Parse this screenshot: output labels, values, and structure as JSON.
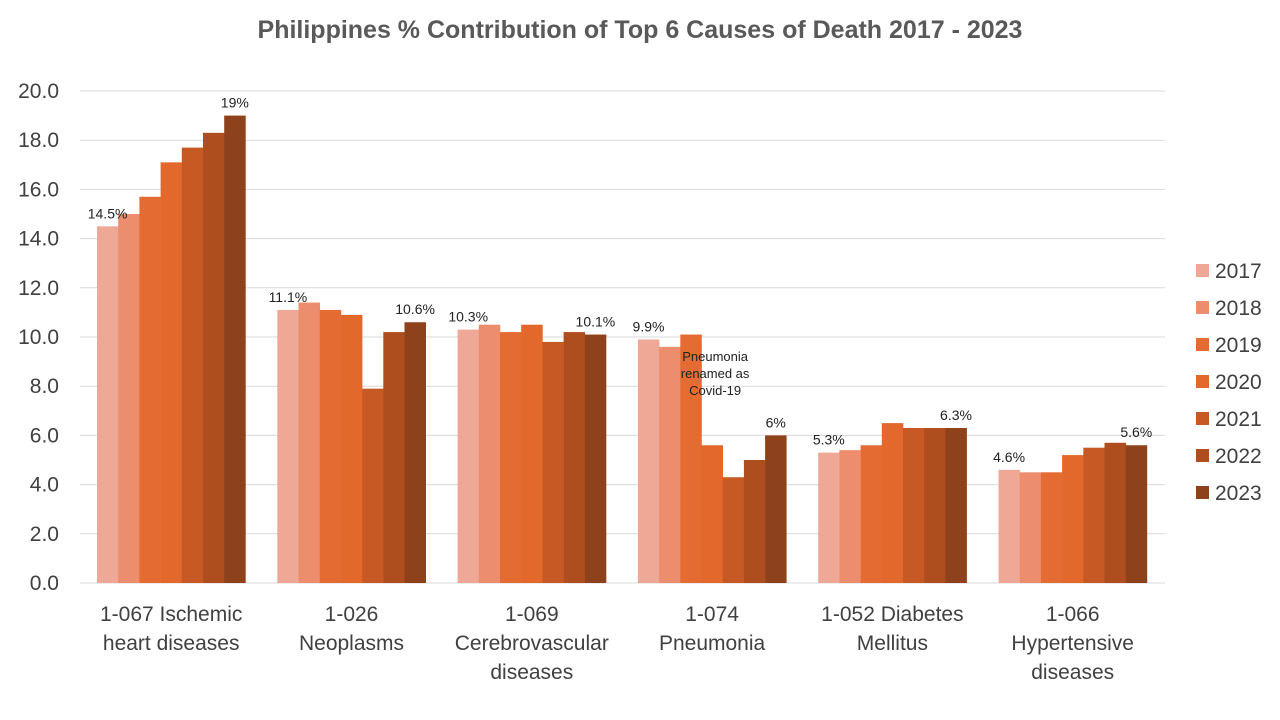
{
  "chart_data": {
    "type": "bar",
    "title": "Philippines % Contribution of Top 6 Causes of Death 2017 - 2023",
    "ylim": [
      0,
      20
    ],
    "yticks": [
      "0.0",
      "2.0",
      "4.0",
      "6.0",
      "8.0",
      "10.0",
      "12.0",
      "14.0",
      "16.0",
      "18.0",
      "20.0"
    ],
    "grid": true,
    "legend_position": "right",
    "categories": [
      [
        "1-067  Ischemic",
        "heart diseases"
      ],
      [
        "1-026",
        "Neoplasms"
      ],
      [
        "1-069",
        "Cerebrovascular",
        "diseases"
      ],
      [
        "1-074",
        "Pneumonia"
      ],
      [
        "1-052  Diabetes",
        "Mellitus"
      ],
      [
        "1-066",
        "Hypertensive",
        "diseases"
      ]
    ],
    "series": [
      {
        "name": "2017",
        "color": "#F0A896",
        "values": [
          14.5,
          11.1,
          10.3,
          9.9,
          5.3,
          4.6
        ]
      },
      {
        "name": "2018",
        "color": "#EC8E6E",
        "values": [
          15.0,
          11.4,
          10.5,
          9.6,
          5.4,
          4.5
        ]
      },
      {
        "name": "2019",
        "color": "#E46C32",
        "values": [
          15.7,
          11.1,
          10.2,
          10.1,
          5.6,
          4.5
        ]
      },
      {
        "name": "2020",
        "color": "#E2692B",
        "values": [
          17.1,
          10.9,
          10.5,
          5.6,
          6.5,
          5.2
        ]
      },
      {
        "name": "2021",
        "color": "#C75A24",
        "values": [
          17.7,
          7.9,
          9.8,
          4.3,
          6.3,
          5.5
        ]
      },
      {
        "name": "2022",
        "color": "#AE4E1F",
        "values": [
          18.3,
          10.2,
          10.2,
          5.0,
          6.3,
          5.7
        ]
      },
      {
        "name": "2023",
        "color": "#8E421B",
        "values": [
          19.0,
          10.6,
          10.1,
          6.0,
          6.3,
          5.6
        ]
      }
    ],
    "data_labels": [
      {
        "category": 0,
        "series": 0,
        "text": "14.5%"
      },
      {
        "category": 0,
        "series": 6,
        "text": "19%"
      },
      {
        "category": 1,
        "series": 0,
        "text": "11.1%"
      },
      {
        "category": 1,
        "series": 6,
        "text": "10.6%"
      },
      {
        "category": 2,
        "series": 0,
        "text": "10.3%"
      },
      {
        "category": 2,
        "series": 6,
        "text": "10.1%"
      },
      {
        "category": 3,
        "series": 0,
        "text": "9.9%"
      },
      {
        "category": 3,
        "series": 6,
        "text": "6%"
      },
      {
        "category": 4,
        "series": 0,
        "text": "5.3%"
      },
      {
        "category": 4,
        "series": 6,
        "text": "6.3%"
      },
      {
        "category": 5,
        "series": 0,
        "text": "4.6%"
      },
      {
        "category": 5,
        "series": 6,
        "text": "5.6%"
      }
    ],
    "annotation": {
      "category": 3,
      "lines": [
        "Pneumonia",
        "renamed as",
        "Covid-19"
      ]
    },
    "gridline_color": "#D9D9D9"
  }
}
